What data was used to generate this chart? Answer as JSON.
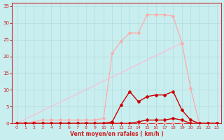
{
  "xlabel": "Vent moyen/en rafales ( km/h )",
  "bg_color": "#c8eef0",
  "grid_color": "#b8dfe0",
  "xlim": [
    -0.5,
    23.5
  ],
  "ylim": [
    0,
    36
  ],
  "xticks": [
    0,
    1,
    2,
    3,
    4,
    5,
    6,
    7,
    8,
    9,
    10,
    11,
    12,
    13,
    14,
    15,
    16,
    17,
    18,
    19,
    20,
    21,
    22,
    23
  ],
  "yticks": [
    0,
    5,
    10,
    15,
    20,
    25,
    30,
    35
  ],
  "diagonal": {
    "x": [
      0,
      19
    ],
    "y": [
      0,
      24
    ],
    "color": "#ffbbcc",
    "lw": 0.8
  },
  "lines": [
    {
      "x": [
        0,
        1,
        2,
        3,
        4,
        5,
        6,
        7,
        8,
        9,
        10,
        11,
        12,
        13,
        14,
        15,
        16,
        17,
        18,
        19,
        20,
        21,
        22,
        23
      ],
      "y": [
        0,
        0,
        0,
        0,
        0,
        0,
        0,
        0,
        0,
        0,
        0,
        0,
        0,
        0,
        0,
        0,
        0,
        0,
        0,
        0,
        0,
        0,
        0,
        0
      ],
      "color": "#ffaaaa",
      "lw": 0.9,
      "marker": "D",
      "ms": 1.8
    },
    {
      "x": [
        0,
        1,
        2,
        3,
        4,
        5,
        6,
        7,
        8,
        9,
        10,
        11,
        12,
        13,
        14,
        15,
        16,
        17,
        18,
        19,
        20,
        21,
        22,
        23
      ],
      "y": [
        0,
        0,
        0.5,
        1,
        1,
        1,
        1,
        1,
        1,
        1,
        1.5,
        21,
        24.5,
        27,
        27,
        32.5,
        32.5,
        32.5,
        32,
        24,
        10.5,
        0,
        0,
        0
      ],
      "color": "#ffaaaa",
      "lw": 0.9,
      "marker": "D",
      "ms": 1.8
    },
    {
      "x": [
        0,
        1,
        2,
        3,
        4,
        5,
        6,
        7,
        8,
        9,
        10,
        11,
        12,
        13,
        14,
        15,
        16,
        17,
        18,
        19,
        20,
        21,
        22,
        23
      ],
      "y": [
        0,
        0,
        0,
        0,
        0,
        0,
        0,
        0,
        0,
        0,
        0,
        0.5,
        5.5,
        9.5,
        6.5,
        8,
        8.5,
        8.5,
        9.5,
        4,
        1,
        0,
        0,
        0
      ],
      "color": "#cc0000",
      "lw": 1.0,
      "marker": "D",
      "ms": 2.0
    },
    {
      "x": [
        0,
        1,
        2,
        3,
        4,
        5,
        6,
        7,
        8,
        9,
        10,
        11,
        12,
        13,
        14,
        15,
        16,
        17,
        18,
        19,
        20,
        21,
        22,
        23
      ],
      "y": [
        0,
        0,
        0,
        0,
        0,
        0,
        0,
        0,
        0,
        0,
        0,
        0,
        0,
        0,
        0.5,
        1,
        1,
        1,
        1.5,
        1,
        0,
        0,
        0,
        0
      ],
      "color": "#cc0000",
      "lw": 1.0,
      "marker": "D",
      "ms": 2.0
    }
  ]
}
